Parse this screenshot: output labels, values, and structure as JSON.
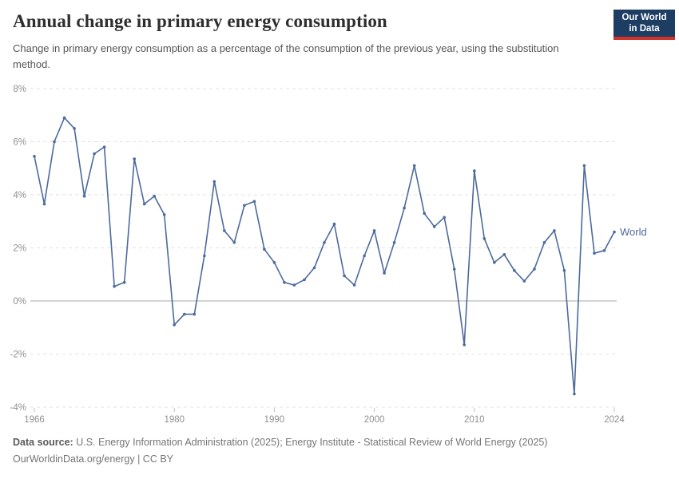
{
  "header": {
    "title": "Annual change in primary energy consumption",
    "subtitle": "Change in primary energy consumption as a percentage of the consumption of the previous year, using the substitution method.",
    "logo": {
      "line1": "Our World",
      "line2": "in Data"
    }
  },
  "colors": {
    "line": "#4C6A9C",
    "series_label": "#4C6A9C",
    "grid": "#e0e0e0",
    "zero_line": "#a8a8a8",
    "axis_text": "#8f8f8f",
    "tick_mark": "#c0c0c0",
    "logo_bg": "#1d3d63",
    "logo_red": "#d0332c"
  },
  "chart_data": {
    "type": "line",
    "title": "Annual change in primary energy consumption",
    "xlabel": "",
    "ylabel": "",
    "ylim": [
      -4,
      8
    ],
    "grid": true,
    "legend_position": "end-of-line",
    "y_ticks": [
      8,
      6,
      4,
      2,
      0,
      -2,
      -4
    ],
    "y_tick_suffix": "%",
    "x_ticks": [
      1966,
      1980,
      1990,
      2000,
      2010,
      2024
    ],
    "x": [
      1966,
      1967,
      1968,
      1969,
      1970,
      1971,
      1972,
      1973,
      1974,
      1975,
      1976,
      1977,
      1978,
      1979,
      1980,
      1981,
      1982,
      1983,
      1984,
      1985,
      1986,
      1987,
      1988,
      1989,
      1990,
      1991,
      1992,
      1993,
      1994,
      1995,
      1996,
      1997,
      1998,
      1999,
      2000,
      2001,
      2002,
      2003,
      2004,
      2005,
      2006,
      2007,
      2008,
      2009,
      2010,
      2011,
      2012,
      2013,
      2014,
      2015,
      2016,
      2017,
      2018,
      2019,
      2020,
      2021,
      2022,
      2023,
      2024
    ],
    "series": [
      {
        "name": "World",
        "values": [
          5.45,
          3.65,
          6.0,
          6.9,
          6.5,
          3.95,
          5.55,
          5.8,
          0.55,
          0.7,
          5.35,
          3.65,
          3.95,
          3.25,
          -0.9,
          -0.5,
          -0.5,
          1.7,
          4.5,
          2.65,
          2.2,
          3.6,
          3.75,
          1.95,
          1.45,
          0.7,
          0.6,
          0.8,
          1.25,
          2.2,
          2.9,
          0.95,
          0.6,
          1.7,
          2.65,
          1.05,
          2.2,
          3.5,
          5.1,
          3.3,
          2.8,
          3.15,
          1.2,
          -1.65,
          4.9,
          2.35,
          1.45,
          1.75,
          1.15,
          0.75,
          1.2,
          2.2,
          2.65,
          1.15,
          -3.5,
          5.1,
          1.8,
          1.9,
          2.6
        ]
      }
    ]
  },
  "footer": {
    "datasource_label": "Data source:",
    "datasource_text": " U.S. Energy Information Administration (2025); Energy Institute - Statistical Review of World Energy (2025)",
    "license_text": "OurWorldinData.org/energy | CC BY"
  }
}
